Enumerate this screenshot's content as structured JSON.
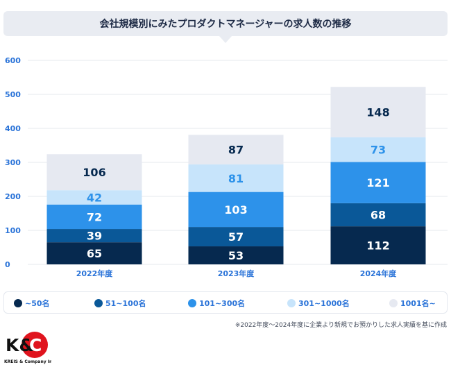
{
  "colors": {
    "s1": "#06294f",
    "s2": "#0a5898",
    "s3": "#2d92ea",
    "s4": "#c7e4fb",
    "s5": "#e6e9f1",
    "axis_text": "#2a73d8",
    "grid": "#e6e9ee"
  },
  "logo": {
    "text": "K&C",
    "caption": "KREIS & Company Inc."
  },
  "footnote": "※2022年度〜2024年度に企業より新規でお預かりした求人実績を基に作成",
  "chart_data": {
    "type": "bar",
    "stacked": true,
    "title": "会社規模別にみたプロダクトマネージャーの求人数の推移",
    "categories": [
      "2022年度",
      "2023年度",
      "2024年度"
    ],
    "ylim": [
      0,
      600
    ],
    "yticks": [
      "0",
      "100",
      "200",
      "300",
      "400",
      "500",
      "600"
    ],
    "grid": true,
    "legend_position": "bottom",
    "series": [
      {
        "name": "~50名",
        "values": [
          65,
          53,
          112
        ],
        "color": "#06294f",
        "label_color": "#ffffff"
      },
      {
        "name": "51~100名",
        "values": [
          39,
          57,
          68
        ],
        "color": "#0a5898",
        "label_color": "#ffffff"
      },
      {
        "name": "101~300名",
        "values": [
          72,
          103,
          121
        ],
        "color": "#2d92ea",
        "label_color": "#ffffff"
      },
      {
        "name": "301~1000名",
        "values": [
          42,
          81,
          73
        ],
        "color": "#c7e4fb",
        "label_color": "#2d92ea"
      },
      {
        "name": "1001名~",
        "values": [
          106,
          87,
          148
        ],
        "color": "#e6e9f1",
        "label_color": "#06294f"
      }
    ]
  }
}
